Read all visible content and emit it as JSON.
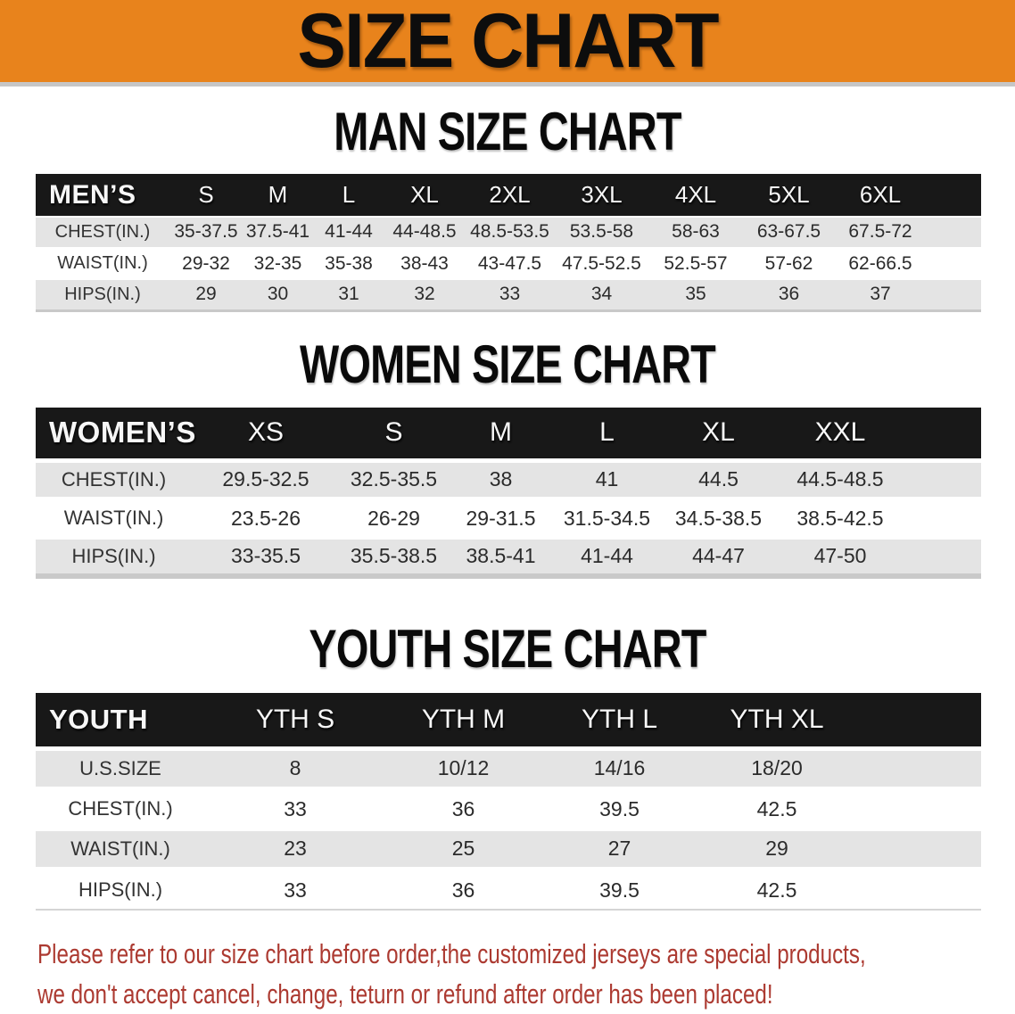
{
  "banner": {
    "title": "SIZE CHART",
    "background_color": "#E8831C"
  },
  "colors": {
    "header_row_bg": "#181818",
    "stripe_row_bg": "#E4E4E4",
    "disclaimer_text": "#AC3A31"
  },
  "sections": {
    "men": {
      "heading": "MAN SIZE CHART",
      "table": {
        "header": [
          "MEN’S",
          "S",
          "M",
          "L",
          "XL",
          "2XL",
          "3XL",
          "4XL",
          "5XL",
          "6XL"
        ],
        "rows": [
          [
            "CHEST(IN.)",
            "35-37.5",
            "37.5-41",
            "41-44",
            "44-48.5",
            "48.5-53.5",
            "53.5-58",
            "58-63",
            "63-67.5",
            "67.5-72"
          ],
          [
            "WAIST(IN.)",
            "29-32",
            "32-35",
            "35-38",
            "38-43",
            "43-47.5",
            "47.5-52.5",
            "52.5-57",
            "57-62",
            "62-66.5"
          ],
          [
            "HIPS(IN.)",
            "29",
            "30",
            "31",
            "32",
            "33",
            "34",
            "35",
            "36",
            "37"
          ]
        ]
      }
    },
    "women": {
      "heading": "WOMEN SIZE CHART",
      "table": {
        "header": [
          "WOMEN’S",
          "XS",
          "S",
          "M",
          "L",
          "XL",
          "XXL"
        ],
        "rows": [
          [
            "CHEST(IN.)",
            "29.5-32.5",
            "32.5-35.5",
            "38",
            "41",
            "44.5",
            "44.5-48.5"
          ],
          [
            "WAIST(IN.)",
            "23.5-26",
            "26-29",
            "29-31.5",
            "31.5-34.5",
            "34.5-38.5",
            "38.5-42.5"
          ],
          [
            "HIPS(IN.)",
            "33-35.5",
            "35.5-38.5",
            "38.5-41",
            "41-44",
            "44-47",
            "47-50"
          ]
        ]
      }
    },
    "youth": {
      "heading": "YOUTH SIZE CHART",
      "table": {
        "header": [
          "YOUTH",
          "YTH S",
          "YTH M",
          "YTH L",
          "YTH XL"
        ],
        "rows": [
          [
            "U.S.SIZE",
            "8",
            "10/12",
            "14/16",
            "18/20"
          ],
          [
            "CHEST(IN.)",
            "33",
            "36",
            "39.5",
            "42.5"
          ],
          [
            "WAIST(IN.)",
            "23",
            "25",
            "27",
            "29"
          ],
          [
            "HIPS(IN.)",
            "33",
            "36",
            "39.5",
            "42.5"
          ]
        ]
      }
    }
  },
  "disclaimer": {
    "line1": "Please refer to our size chart before order,the customized jerseys are special products,",
    "line2": "we don't accept cancel, change, teturn or refund after order has been placed!"
  }
}
